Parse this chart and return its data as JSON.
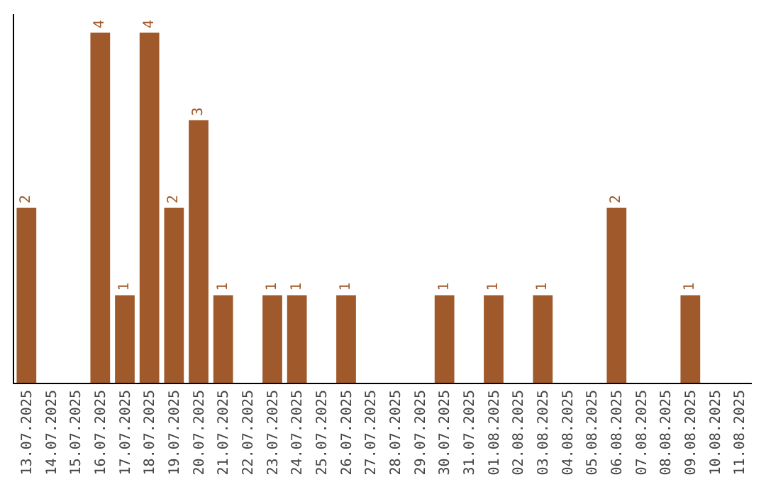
{
  "chart_data": {
    "type": "bar",
    "categories": [
      "13.07.2025",
      "14.07.2025",
      "15.07.2025",
      "16.07.2025",
      "17.07.2025",
      "18.07.2025",
      "19.07.2025",
      "20.07.2025",
      "21.07.2025",
      "22.07.2025",
      "23.07.2025",
      "24.07.2025",
      "25.07.2025",
      "26.07.2025",
      "27.07.2025",
      "28.07.2025",
      "29.07.2025",
      "30.07.2025",
      "31.07.2025",
      "01.08.2025",
      "02.08.2025",
      "03.08.2025",
      "04.08.2025",
      "05.08.2025",
      "06.08.2025",
      "07.08.2025",
      "08.08.2025",
      "09.08.2025",
      "10.08.2025",
      "11.08.2025"
    ],
    "values": [
      2,
      null,
      null,
      4,
      1,
      4,
      2,
      3,
      1,
      null,
      1,
      1,
      null,
      1,
      null,
      null,
      null,
      1,
      null,
      1,
      null,
      1,
      null,
      null,
      2,
      null,
      null,
      1,
      null,
      null
    ],
    "color": "#a0592a",
    "data_labels": true,
    "grid": false,
    "legend": false,
    "tick_labels": "x"
  }
}
